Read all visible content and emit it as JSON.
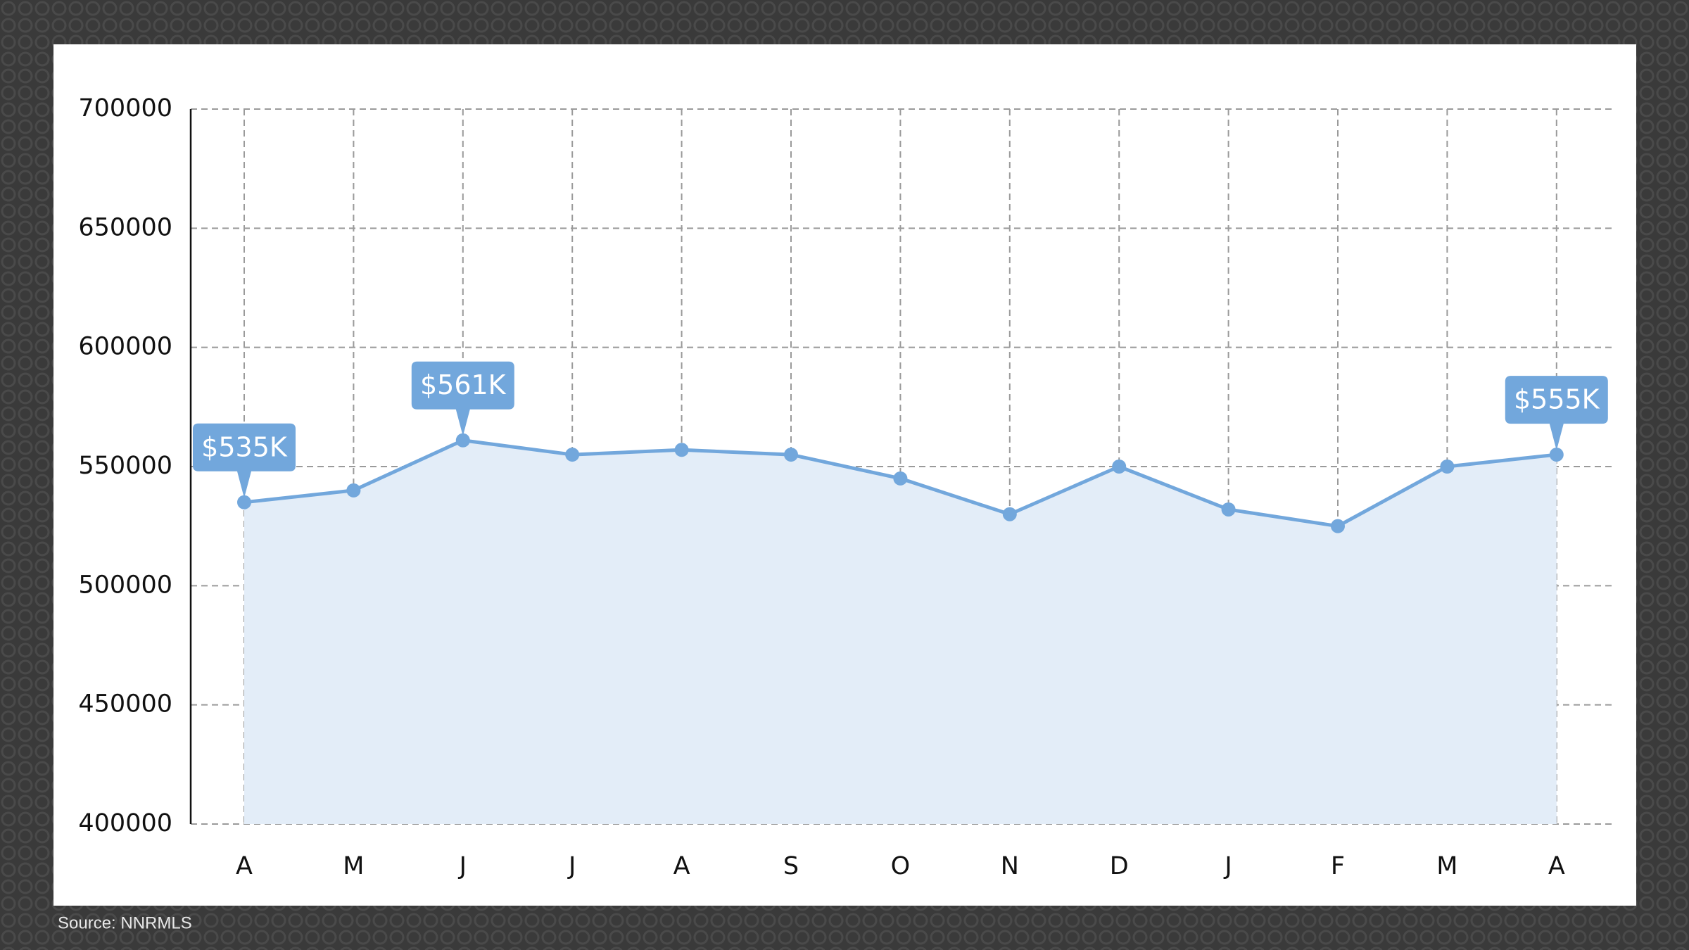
{
  "chart_data": {
    "type": "area",
    "categories": [
      "A",
      "M",
      "J",
      "J",
      "A",
      "S",
      "O",
      "N",
      "D",
      "J",
      "F",
      "M",
      "A"
    ],
    "values": [
      535000,
      540000,
      561000,
      555000,
      557000,
      555000,
      545000,
      530000,
      550000,
      532000,
      525000,
      550000,
      555000
    ],
    "value_labels": [
      "$535K",
      null,
      "$561K",
      null,
      null,
      null,
      null,
      null,
      null,
      null,
      null,
      null,
      "$555K"
    ],
    "color": "#72a7dc",
    "fill_color": "#e3edf8",
    "ylim": [
      400000,
      700000
    ],
    "yticks": [
      400000,
      450000,
      500000,
      550000,
      600000,
      650000,
      700000
    ],
    "grid": true,
    "source": "Source: NNRMLS"
  }
}
